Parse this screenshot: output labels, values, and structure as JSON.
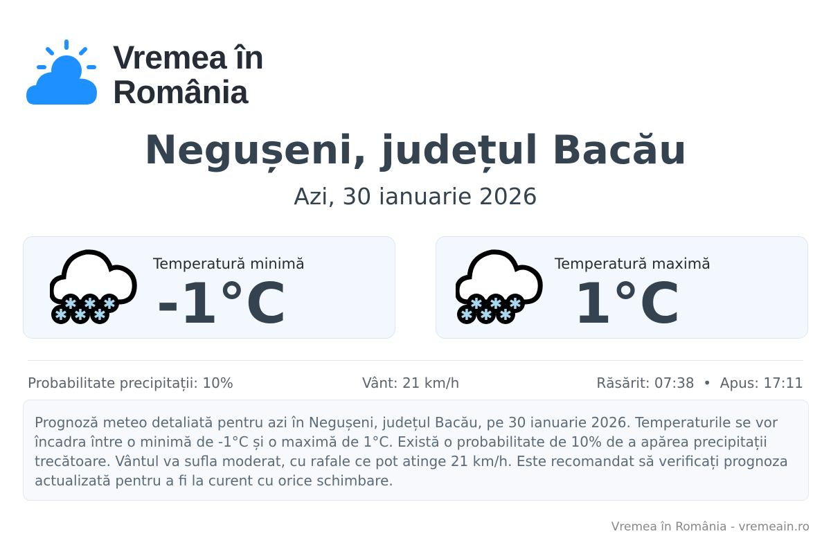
{
  "brand": {
    "line1": "Vremea în",
    "line2": "România",
    "color": "#1e90ff"
  },
  "header": {
    "title": "Negușeni, județul Bacău",
    "subtitle": "Azi, 30 ianuarie 2026"
  },
  "cards": [
    {
      "icon": "snow-cloud-icon",
      "label": "Temperatură minimă",
      "value": "-1°C"
    },
    {
      "icon": "snow-cloud-icon",
      "label": "Temperatură maximă",
      "value": "1°C"
    }
  ],
  "stats": {
    "precip": "Probabilitate precipitații: 10%",
    "wind": "Vânt: 21 km/h",
    "sun": "Răsărit: 07:38  •  Apus: 17:11"
  },
  "description": "Prognoză meteo detaliată pentru azi în Negușeni, județul Bacău, pe 30 ianuarie 2026. Temperaturile se vor încadra între o minimă de -1°C și o maximă de 1°C. Există o probabilitate de 10% de a apărea precipitații trecătoare. Vântul va sufla moderat, cu rafale ce pot atinge 21 km/h. Este recomandat să verificați prognoza actualizată pentru a fi la curent cu orice schimbare.",
  "footer": "Vremea în România - vremeain.ro"
}
